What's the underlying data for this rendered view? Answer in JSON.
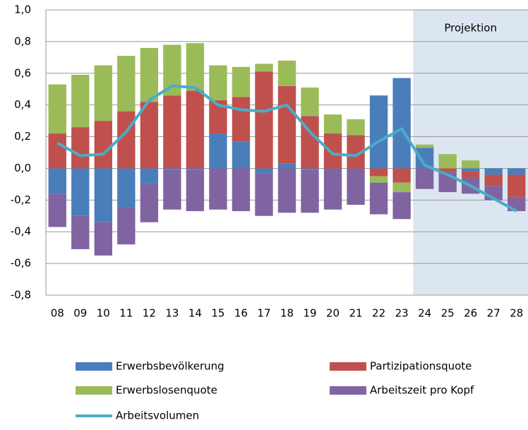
{
  "chart_data": {
    "type": "stacked-bar-line",
    "annotation": "Projektion",
    "categories": [
      "08",
      "09",
      "10",
      "11",
      "12",
      "13",
      "14",
      "15",
      "16",
      "17",
      "18",
      "19",
      "20",
      "21",
      "22",
      "23",
      "24",
      "25",
      "26",
      "27",
      "28"
    ],
    "series": [
      {
        "name": "Erwerbsbevölkerung",
        "type": "bar",
        "color": "#4a7ebb",
        "values": [
          -0.16,
          -0.3,
          -0.34,
          -0.25,
          -0.1,
          -0.01,
          -0.01,
          0.22,
          0.17,
          -0.03,
          0.03,
          -0.01,
          0.0,
          0.0,
          0.46,
          0.57,
          0.13,
          0.0,
          -0.02,
          -0.04,
          -0.04
        ]
      },
      {
        "name": "Partizipationsquote",
        "type": "bar",
        "color": "#c0504d",
        "values": [
          0.22,
          0.26,
          0.3,
          0.36,
          0.42,
          0.46,
          0.49,
          0.21,
          0.28,
          0.61,
          0.49,
          0.33,
          0.22,
          0.21,
          -0.05,
          -0.09,
          0.0,
          -0.02,
          -0.04,
          -0.07,
          -0.14
        ]
      },
      {
        "name": "Erwerbslosenquote",
        "type": "bar",
        "color": "#9bbb59",
        "values": [
          0.31,
          0.33,
          0.35,
          0.35,
          0.34,
          0.32,
          0.3,
          0.22,
          0.19,
          0.05,
          0.16,
          0.18,
          0.12,
          0.1,
          -0.04,
          -0.06,
          0.02,
          0.09,
          0.05,
          0.0,
          0.0
        ]
      },
      {
        "name": "Arbeitszeit pro Kopf",
        "type": "bar",
        "color": "#8064a2",
        "values": [
          -0.21,
          -0.21,
          -0.21,
          -0.23,
          -0.24,
          -0.25,
          -0.26,
          -0.26,
          -0.27,
          -0.27,
          -0.28,
          -0.27,
          -0.26,
          -0.23,
          -0.2,
          -0.17,
          -0.13,
          -0.13,
          -0.1,
          -0.09,
          -0.09
        ]
      },
      {
        "name": "Arbeitsvolumen",
        "type": "line",
        "color": "#4bacc6",
        "values": [
          0.16,
          0.08,
          0.09,
          0.23,
          0.43,
          0.52,
          0.51,
          0.4,
          0.37,
          0.36,
          0.4,
          0.23,
          0.09,
          0.08,
          0.17,
          0.25,
          0.02,
          -0.04,
          -0.11,
          -0.19,
          -0.27
        ]
      }
    ],
    "ylim": [
      -0.8,
      1.0
    ],
    "yticks": [
      {
        "value": -0.8,
        "label": "-0,8"
      },
      {
        "value": -0.6,
        "label": "-0,6"
      },
      {
        "value": -0.4,
        "label": "-0,4"
      },
      {
        "value": -0.2,
        "label": "-0,2"
      },
      {
        "value": 0,
        "label": "0,0"
      },
      {
        "value": 0.2,
        "label": "0,2"
      },
      {
        "value": 0.4,
        "label": "0,4"
      },
      {
        "value": 0.6,
        "label": "0,6"
      },
      {
        "value": 0.8,
        "label": "0,8"
      },
      {
        "value": 1.0,
        "label": "1,0"
      }
    ],
    "grid": true
  }
}
